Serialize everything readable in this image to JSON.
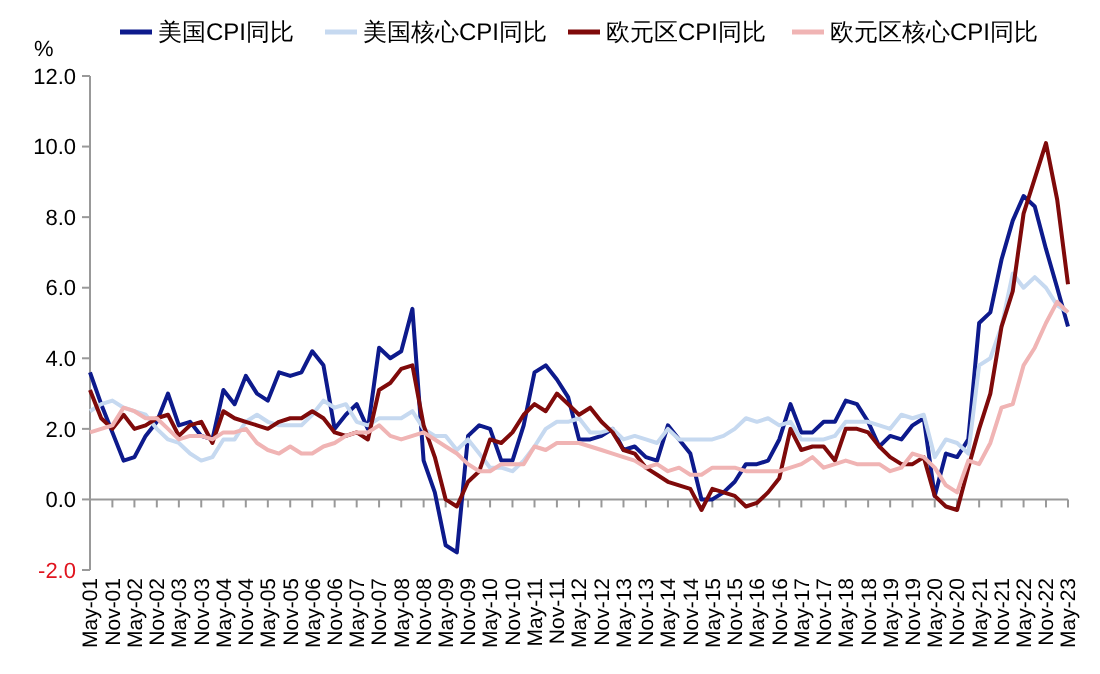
{
  "chart_data": {
    "type": "line",
    "ylabel": "%",
    "legend": "top",
    "line_style": "solid",
    "marker": "none",
    "x": [
      "2001-05",
      "2001-08",
      "2001-11",
      "2002-02",
      "2002-05",
      "2002-08",
      "2002-11",
      "2003-02",
      "2003-05",
      "2003-08",
      "2003-11",
      "2004-02",
      "2004-05",
      "2004-08",
      "2004-11",
      "2005-02",
      "2005-05",
      "2005-08",
      "2005-11",
      "2006-02",
      "2006-05",
      "2006-08",
      "2006-11",
      "2007-02",
      "2007-05",
      "2007-08",
      "2007-11",
      "2008-02",
      "2008-05",
      "2008-08",
      "2008-11",
      "2009-02",
      "2009-05",
      "2009-08",
      "2009-11",
      "2010-02",
      "2010-05",
      "2010-08",
      "2010-11",
      "2011-02",
      "2011-05",
      "2011-08",
      "2011-11",
      "2012-02",
      "2012-05",
      "2012-08",
      "2012-11",
      "2013-02",
      "2013-05",
      "2013-08",
      "2013-11",
      "2014-02",
      "2014-05",
      "2014-08",
      "2014-11",
      "2015-02",
      "2015-05",
      "2015-08",
      "2015-11",
      "2016-02",
      "2016-05",
      "2016-08",
      "2016-11",
      "2017-02",
      "2017-05",
      "2017-08",
      "2017-11",
      "2018-02",
      "2018-05",
      "2018-08",
      "2018-11",
      "2019-02",
      "2019-05",
      "2019-08",
      "2019-11",
      "2020-02",
      "2020-05",
      "2020-08",
      "2020-11",
      "2021-02",
      "2021-05",
      "2021-08",
      "2021-11",
      "2022-02",
      "2022-05",
      "2022-08",
      "2022-11",
      "2023-02",
      "2023-05"
    ],
    "series": [
      {
        "name": "美国CPI同比",
        "color": "#0d1a8c",
        "values": [
          3.6,
          2.7,
          1.9,
          1.1,
          1.2,
          1.8,
          2.2,
          3.0,
          2.1,
          2.2,
          1.8,
          1.7,
          3.1,
          2.7,
          3.5,
          3.0,
          2.8,
          3.6,
          3.5,
          3.6,
          4.2,
          3.8,
          2.0,
          2.4,
          2.7,
          2.0,
          4.3,
          4.0,
          4.2,
          5.4,
          1.1,
          0.2,
          -1.3,
          -1.5,
          1.8,
          2.1,
          2.0,
          1.1,
          1.1,
          2.1,
          3.6,
          3.8,
          3.4,
          2.9,
          1.7,
          1.7,
          1.8,
          2.0,
          1.4,
          1.5,
          1.2,
          1.1,
          2.1,
          1.7,
          1.3,
          0.0,
          0.0,
          0.2,
          0.5,
          1.0,
          1.0,
          1.1,
          1.7,
          2.7,
          1.9,
          1.9,
          2.2,
          2.2,
          2.8,
          2.7,
          2.2,
          1.5,
          1.8,
          1.7,
          2.1,
          2.3,
          0.1,
          1.3,
          1.2,
          1.7,
          5.0,
          5.3,
          6.8,
          7.9,
          8.6,
          8.3,
          7.1,
          6.0,
          4.9
        ]
      },
      {
        "name": "美国核心CPI同比",
        "color": "#c6d9f0",
        "values": [
          2.5,
          2.7,
          2.8,
          2.6,
          2.5,
          2.4,
          2.0,
          1.7,
          1.6,
          1.3,
          1.1,
          1.2,
          1.7,
          1.7,
          2.2,
          2.4,
          2.2,
          2.1,
          2.1,
          2.1,
          2.4,
          2.8,
          2.6,
          2.7,
          2.2,
          2.1,
          2.3,
          2.3,
          2.3,
          2.5,
          2.0,
          1.8,
          1.8,
          1.4,
          1.7,
          1.3,
          0.9,
          0.9,
          0.8,
          1.1,
          1.5,
          2.0,
          2.2,
          2.2,
          2.3,
          1.9,
          1.9,
          2.0,
          1.7,
          1.8,
          1.7,
          1.6,
          2.0,
          1.7,
          1.7,
          1.7,
          1.7,
          1.8,
          2.0,
          2.3,
          2.2,
          2.3,
          2.1,
          2.2,
          1.7,
          1.7,
          1.7,
          1.8,
          2.2,
          2.2,
          2.2,
          2.1,
          2.0,
          2.4,
          2.3,
          2.4,
          1.2,
          1.7,
          1.6,
          1.3,
          3.8,
          4.0,
          4.9,
          6.4,
          6.0,
          6.3,
          6.0,
          5.5,
          5.3
        ]
      },
      {
        "name": "欧元区CPI同比",
        "color": "#7f0a0a",
        "values": [
          3.1,
          2.3,
          2.0,
          2.4,
          2.0,
          2.1,
          2.3,
          2.4,
          1.8,
          2.1,
          2.2,
          1.6,
          2.5,
          2.3,
          2.2,
          2.1,
          2.0,
          2.2,
          2.3,
          2.3,
          2.5,
          2.3,
          1.9,
          1.8,
          1.9,
          1.7,
          3.1,
          3.3,
          3.7,
          3.8,
          2.1,
          1.2,
          0.0,
          -0.2,
          0.5,
          0.8,
          1.7,
          1.6,
          1.9,
          2.4,
          2.7,
          2.5,
          3.0,
          2.7,
          2.4,
          2.6,
          2.2,
          1.9,
          1.4,
          1.3,
          0.9,
          0.7,
          0.5,
          0.4,
          0.3,
          -0.3,
          0.3,
          0.2,
          0.1,
          -0.2,
          -0.1,
          0.2,
          0.6,
          2.0,
          1.4,
          1.5,
          1.5,
          1.1,
          2.0,
          2.0,
          1.9,
          1.5,
          1.2,
          1.0,
          1.0,
          1.2,
          0.1,
          -0.2,
          -0.3,
          0.9,
          2.0,
          3.0,
          4.9,
          5.9,
          8.1,
          9.1,
          10.1,
          8.5,
          6.1
        ]
      },
      {
        "name": "欧元区核心CPI同比",
        "color": "#f0b4b4",
        "values": [
          1.9,
          2.0,
          2.1,
          2.6,
          2.5,
          2.3,
          2.3,
          2.0,
          1.7,
          1.8,
          1.8,
          1.7,
          1.9,
          1.9,
          2.0,
          1.6,
          1.4,
          1.3,
          1.5,
          1.3,
          1.3,
          1.5,
          1.6,
          1.8,
          1.9,
          1.9,
          2.1,
          1.8,
          1.7,
          1.8,
          1.9,
          1.7,
          1.5,
          1.3,
          1.0,
          0.8,
          0.8,
          1.0,
          1.0,
          1.0,
          1.5,
          1.4,
          1.6,
          1.6,
          1.6,
          1.5,
          1.4,
          1.3,
          1.2,
          1.1,
          0.9,
          1.0,
          0.8,
          0.9,
          0.7,
          0.7,
          0.9,
          0.9,
          0.9,
          0.8,
          0.8,
          0.8,
          0.8,
          0.9,
          1.0,
          1.2,
          0.9,
          1.0,
          1.1,
          1.0,
          1.0,
          1.0,
          0.8,
          0.9,
          1.3,
          1.2,
          0.9,
          0.4,
          0.2,
          1.1,
          1.0,
          1.6,
          2.6,
          2.7,
          3.8,
          4.3,
          5.0,
          5.6,
          5.3
        ]
      }
    ],
    "ylim": [
      -2,
      12
    ],
    "yticks": [
      {
        "value": -2,
        "label": "-2.0"
      },
      {
        "value": 0,
        "label": "0.0"
      },
      {
        "value": 2,
        "label": "2.0"
      },
      {
        "value": 4,
        "label": "4.0"
      },
      {
        "value": 6,
        "label": "6.0"
      },
      {
        "value": 8,
        "label": "8.0"
      },
      {
        "value": 10,
        "label": "10.0"
      },
      {
        "value": 12,
        "label": "12.0"
      }
    ],
    "xlim": [
      "2001-05",
      "2023-05"
    ],
    "xticks": [
      {
        "value": "2001-05",
        "label": "May-01"
      },
      {
        "value": "2001-11",
        "label": "Nov-01"
      },
      {
        "value": "2002-05",
        "label": "May-02"
      },
      {
        "value": "2002-11",
        "label": "Nov-02"
      },
      {
        "value": "2003-05",
        "label": "May-03"
      },
      {
        "value": "2003-11",
        "label": "Nov-03"
      },
      {
        "value": "2004-05",
        "label": "May-04"
      },
      {
        "value": "2004-11",
        "label": "Nov-04"
      },
      {
        "value": "2005-05",
        "label": "May-05"
      },
      {
        "value": "2005-11",
        "label": "Nov-05"
      },
      {
        "value": "2006-05",
        "label": "May-06"
      },
      {
        "value": "2006-11",
        "label": "Nov-06"
      },
      {
        "value": "2007-05",
        "label": "May-07"
      },
      {
        "value": "2007-11",
        "label": "Nov-07"
      },
      {
        "value": "2008-05",
        "label": "May-08"
      },
      {
        "value": "2008-11",
        "label": "Nov-08"
      },
      {
        "value": "2009-05",
        "label": "May-09"
      },
      {
        "value": "2009-11",
        "label": "Nov-09"
      },
      {
        "value": "2010-05",
        "label": "May-10"
      },
      {
        "value": "2010-11",
        "label": "Nov-10"
      },
      {
        "value": "2011-05",
        "label": "May-11"
      },
      {
        "value": "2011-11",
        "label": "Nov-11"
      },
      {
        "value": "2012-05",
        "label": "May-12"
      },
      {
        "value": "2012-11",
        "label": "Nov-12"
      },
      {
        "value": "2013-05",
        "label": "May-13"
      },
      {
        "value": "2013-11",
        "label": "Nov-13"
      },
      {
        "value": "2014-05",
        "label": "May-14"
      },
      {
        "value": "2014-11",
        "label": "Nov-14"
      },
      {
        "value": "2015-05",
        "label": "May-15"
      },
      {
        "value": "2015-11",
        "label": "Nov-15"
      },
      {
        "value": "2016-05",
        "label": "May-16"
      },
      {
        "value": "2016-11",
        "label": "Nov-16"
      },
      {
        "value": "2017-05",
        "label": "May-17"
      },
      {
        "value": "2017-11",
        "label": "Nov-17"
      },
      {
        "value": "2018-05",
        "label": "May-18"
      },
      {
        "value": "2018-11",
        "label": "Nov-18"
      },
      {
        "value": "2019-05",
        "label": "May-19"
      },
      {
        "value": "2019-11",
        "label": "Nov-19"
      },
      {
        "value": "2020-05",
        "label": "May-20"
      },
      {
        "value": "2020-11",
        "label": "Nov-20"
      },
      {
        "value": "2021-05",
        "label": "May-21"
      },
      {
        "value": "2021-11",
        "label": "Nov-21"
      },
      {
        "value": "2022-05",
        "label": "May-22"
      },
      {
        "value": "2022-11",
        "label": "Nov-22"
      },
      {
        "value": "2023-05",
        "label": "May-23"
      }
    ]
  }
}
